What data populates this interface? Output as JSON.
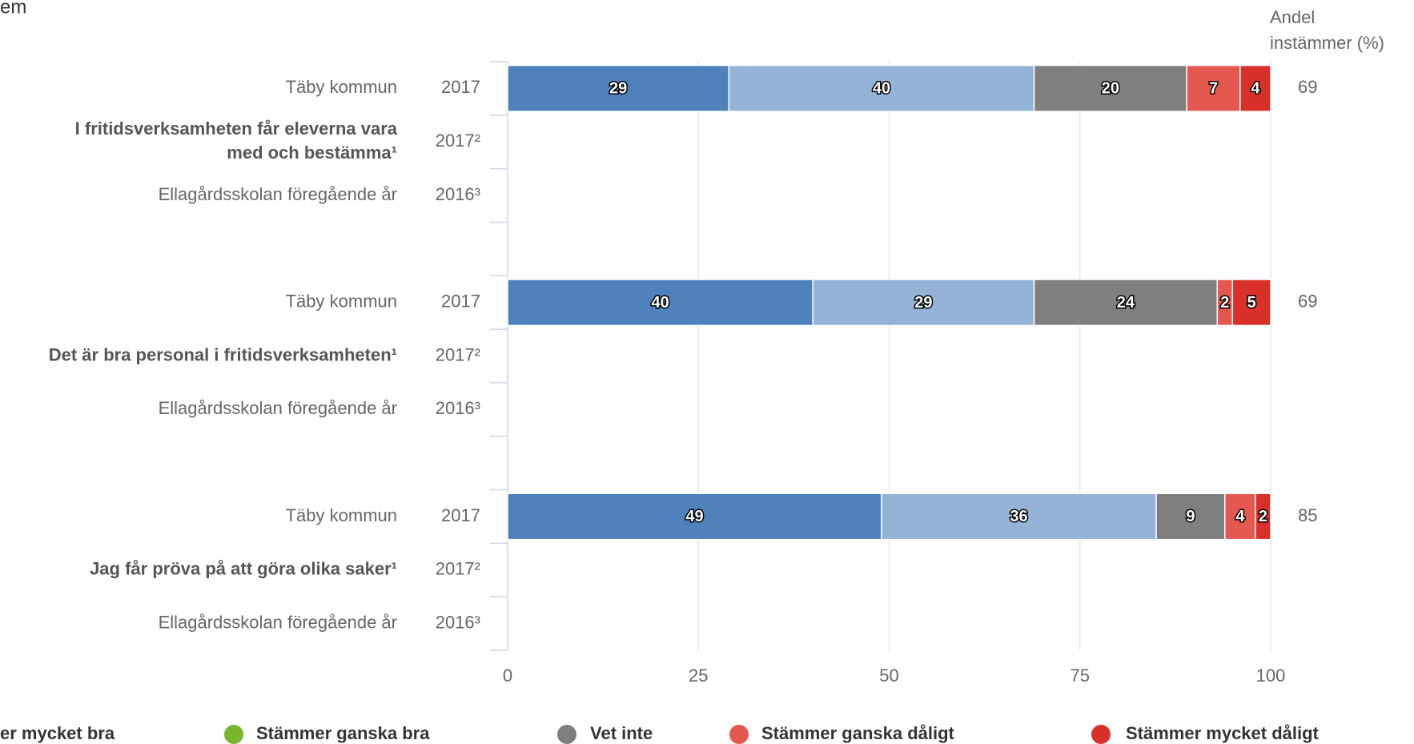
{
  "chart_data": {
    "type": "bar",
    "orientation": "horizontal",
    "stacked": true,
    "title": "em",
    "categories": [
      "Täby kommun",
      "I fritidsverksamheten får eleverna vara med och bestämma¹",
      "Ellagårdsskolan föregående år",
      null,
      "Täby kommun",
      "Det är bra personal i fritidsverksamheten¹",
      "Ellagårdsskolan föregående år",
      null,
      "Täby kommun",
      "Jag får pröva på att göra olika saker¹",
      "Ellagårdsskolan föregående år"
    ],
    "years": [
      "2017",
      "2017²",
      "2016³",
      null,
      "2017",
      "2017²",
      "2016³",
      null,
      "2017",
      "2017²",
      "2016³"
    ],
    "series": [
      {
        "name": "er mycket bra",
        "color": "#4f81bd",
        "values": [
          29,
          null,
          null,
          null,
          40,
          null,
          null,
          null,
          49,
          null,
          null
        ]
      },
      {
        "name": "Stämmer ganska bra",
        "color": "#95b3d7",
        "legend_color": "#77b72e",
        "values": [
          40,
          null,
          null,
          null,
          29,
          null,
          null,
          null,
          36,
          null,
          null
        ]
      },
      {
        "name": "Vet inte",
        "color": "#7f7f7f",
        "legend_color": "#7f7f7f",
        "values": [
          20,
          null,
          null,
          null,
          24,
          null,
          null,
          null,
          9,
          null,
          null
        ]
      },
      {
        "name": "Stämmer ganska dåligt",
        "color": "#e5584f",
        "legend_color": "#e5584f",
        "values": [
          7,
          null,
          null,
          null,
          2,
          null,
          null,
          null,
          4,
          null,
          null
        ]
      },
      {
        "name": "Stämmer mycket dåligt",
        "color": "#d9302a",
        "legend_color": "#d9302a",
        "values": [
          4,
          null,
          null,
          null,
          5,
          null,
          null,
          null,
          2,
          null,
          null
        ]
      }
    ],
    "share_label": "Andel instämmer (%)",
    "share": [
      69,
      null,
      null,
      null,
      69,
      null,
      null,
      null,
      85,
      null,
      null
    ],
    "xlim": [
      0,
      100
    ],
    "xticks": [
      0,
      25,
      50,
      75,
      100
    ],
    "grid": true,
    "legend": "bottom"
  }
}
